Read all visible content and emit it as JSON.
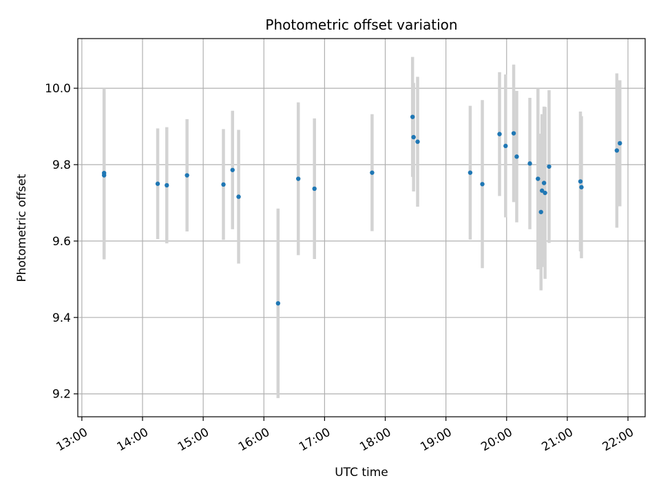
{
  "chart_data": {
    "type": "scatter",
    "title": "Photometric offset variation",
    "xlabel": "UTC time",
    "ylabel": "Photometric offset",
    "x_ticks": [
      "13:00",
      "14:00",
      "15:00",
      "16:00",
      "17:00",
      "18:00",
      "19:00",
      "20:00",
      "21:00",
      "22:00"
    ],
    "y_ticks": [
      "9.2",
      "9.4",
      "9.6",
      "9.8",
      "10.0"
    ],
    "xlim": [
      "12:56",
      "22:17"
    ],
    "ylim": [
      9.14,
      10.13
    ],
    "grid": true,
    "point_color": "#1f77b4",
    "errorbar_color": "#d3d3d3",
    "points": [
      {
        "x": "13:22",
        "y": 9.778,
        "err": 0.222
      },
      {
        "x": "13:22",
        "y": 9.772,
        "err": 0.22
      },
      {
        "x": "14:15",
        "y": 9.75,
        "err": 0.145
      },
      {
        "x": "14:24",
        "y": 9.746,
        "err": 0.152
      },
      {
        "x": "14:44",
        "y": 9.772,
        "err": 0.147
      },
      {
        "x": "15:20",
        "y": 9.748,
        "err": 0.145
      },
      {
        "x": "15:29",
        "y": 9.786,
        "err": 0.155
      },
      {
        "x": "15:35",
        "y": 9.716,
        "err": 0.175
      },
      {
        "x": "16:14",
        "y": 9.437,
        "err": 0.248
      },
      {
        "x": "16:34",
        "y": 9.763,
        "err": 0.2
      },
      {
        "x": "16:50",
        "y": 9.737,
        "err": 0.184
      },
      {
        "x": "17:47",
        "y": 9.779,
        "err": 0.153
      },
      {
        "x": "18:27",
        "y": 9.925,
        "err": 0.157
      },
      {
        "x": "18:28",
        "y": 9.872,
        "err": 0.142
      },
      {
        "x": "18:32",
        "y": 9.86,
        "err": 0.17
      },
      {
        "x": "19:24",
        "y": 9.779,
        "err": 0.175
      },
      {
        "x": "19:36",
        "y": 9.749,
        "err": 0.22
      },
      {
        "x": "19:53",
        "y": 9.88,
        "err": 0.162
      },
      {
        "x": "19:59",
        "y": 9.849,
        "err": 0.187
      },
      {
        "x": "20:07",
        "y": 9.882,
        "err": 0.18
      },
      {
        "x": "20:10",
        "y": 9.821,
        "err": 0.172
      },
      {
        "x": "20:23",
        "y": 9.803,
        "err": 0.172
      },
      {
        "x": "20:31",
        "y": 9.763,
        "err": 0.237
      },
      {
        "x": "20:34",
        "y": 9.676,
        "err": 0.205
      },
      {
        "x": "20:35",
        "y": 9.732,
        "err": 0.2
      },
      {
        "x": "20:37",
        "y": 9.752,
        "err": 0.2
      },
      {
        "x": "20:38",
        "y": 9.726,
        "err": 0.225
      },
      {
        "x": "20:42",
        "y": 9.795,
        "err": 0.2
      },
      {
        "x": "21:13",
        "y": 9.756,
        "err": 0.183
      },
      {
        "x": "21:14",
        "y": 9.741,
        "err": 0.186
      },
      {
        "x": "21:49",
        "y": 9.837,
        "err": 0.202
      },
      {
        "x": "21:52",
        "y": 9.856,
        "err": 0.165
      }
    ]
  }
}
